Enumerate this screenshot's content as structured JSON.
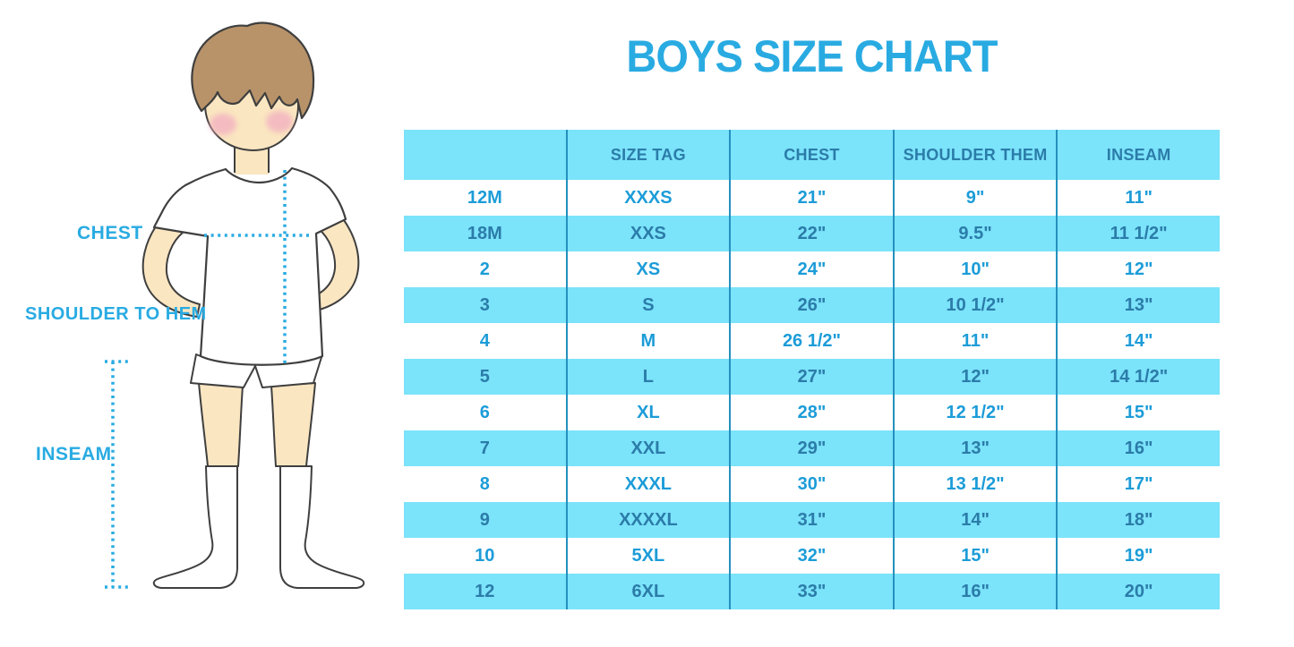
{
  "title": "BOYS SIZE CHART",
  "figure": {
    "chest_label": "CHEST",
    "shoulder_to_hem_label": "SHOULDER TO HEM",
    "inseam_label": "INSEAM"
  },
  "chart_data": {
    "type": "table",
    "title": "BOYS SIZE CHART",
    "columns": [
      "",
      "SIZE TAG",
      "CHEST",
      "SHOULDER THEM",
      "INSEAM"
    ],
    "rows": [
      [
        "12M",
        "XXXS",
        "21\"",
        "9\"",
        "11\""
      ],
      [
        "18M",
        "XXS",
        "22\"",
        "9.5\"",
        "11 1/2\""
      ],
      [
        "2",
        "XS",
        "24\"",
        "10\"",
        "12\""
      ],
      [
        "3",
        "S",
        "26\"",
        "10 1/2\"",
        "13\""
      ],
      [
        "4",
        "M",
        "26 1/2\"",
        "11\"",
        "14\""
      ],
      [
        "5",
        "L",
        "27\"",
        "12\"",
        "14 1/2\""
      ],
      [
        "6",
        "XL",
        "28\"",
        "12 1/2\"",
        "15\""
      ],
      [
        "7",
        "XXL",
        "29\"",
        "13\"",
        "16\""
      ],
      [
        "8",
        "XXXL",
        "30\"",
        "13 1/2\"",
        "17\""
      ],
      [
        "9",
        "XXXXL",
        "31\"",
        "14\"",
        "18\""
      ],
      [
        "10",
        "5XL",
        "32\"",
        "15\"",
        "19\""
      ],
      [
        "12",
        "6XL",
        "33\"",
        "16\"",
        "20\""
      ]
    ],
    "row_striping": "even rows (2nd,4th,...) highlighted cyan",
    "legend_position": "none",
    "grid": "vertical column dividers only"
  },
  "colors": {
    "accent": "#29ABE2",
    "band": "#7BE3FA",
    "header_text": "#2B7CA9",
    "cell_text": "#1C9CD8",
    "divider": "#2490BE",
    "skin": "#FAE6C1",
    "hair": "#B8936A",
    "blush": "#F2AEC0",
    "outline": "#3F3F3F"
  }
}
